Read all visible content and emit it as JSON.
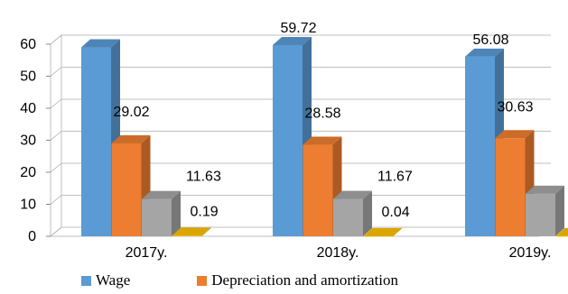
{
  "chart_data": {
    "type": "bar",
    "categories": [
      "2017y.",
      "2018y.",
      "2019y."
    ],
    "series": [
      {
        "name": "Wage",
        "values": [
          59.0,
          59.72,
          56.08
        ],
        "labels": [
          "",
          "59.72",
          "56.08"
        ],
        "color": "#5b9bd5"
      },
      {
        "name": "Depreciation and amortization",
        "values": [
          29.02,
          28.58,
          30.63
        ],
        "labels": [
          "29.02",
          "28.58",
          "30.63"
        ],
        "color": "#ed7d31"
      },
      {
        "name": "",
        "values": [
          11.63,
          11.67,
          13.28
        ],
        "labels": [
          "11.63",
          "11.67",
          "13.28"
        ],
        "color": "#a5a5a5"
      },
      {
        "name": "",
        "values": [
          0.19,
          0.04,
          0.02
        ],
        "labels": [
          "0.19",
          "0.04",
          "0.02"
        ],
        "color": "#ffc000"
      }
    ],
    "yticks": [
      "0",
      "10",
      "20",
      "30",
      "40",
      "50",
      "60"
    ],
    "ylim": [
      0,
      60
    ],
    "grid": true,
    "legend_position": "bottom"
  }
}
